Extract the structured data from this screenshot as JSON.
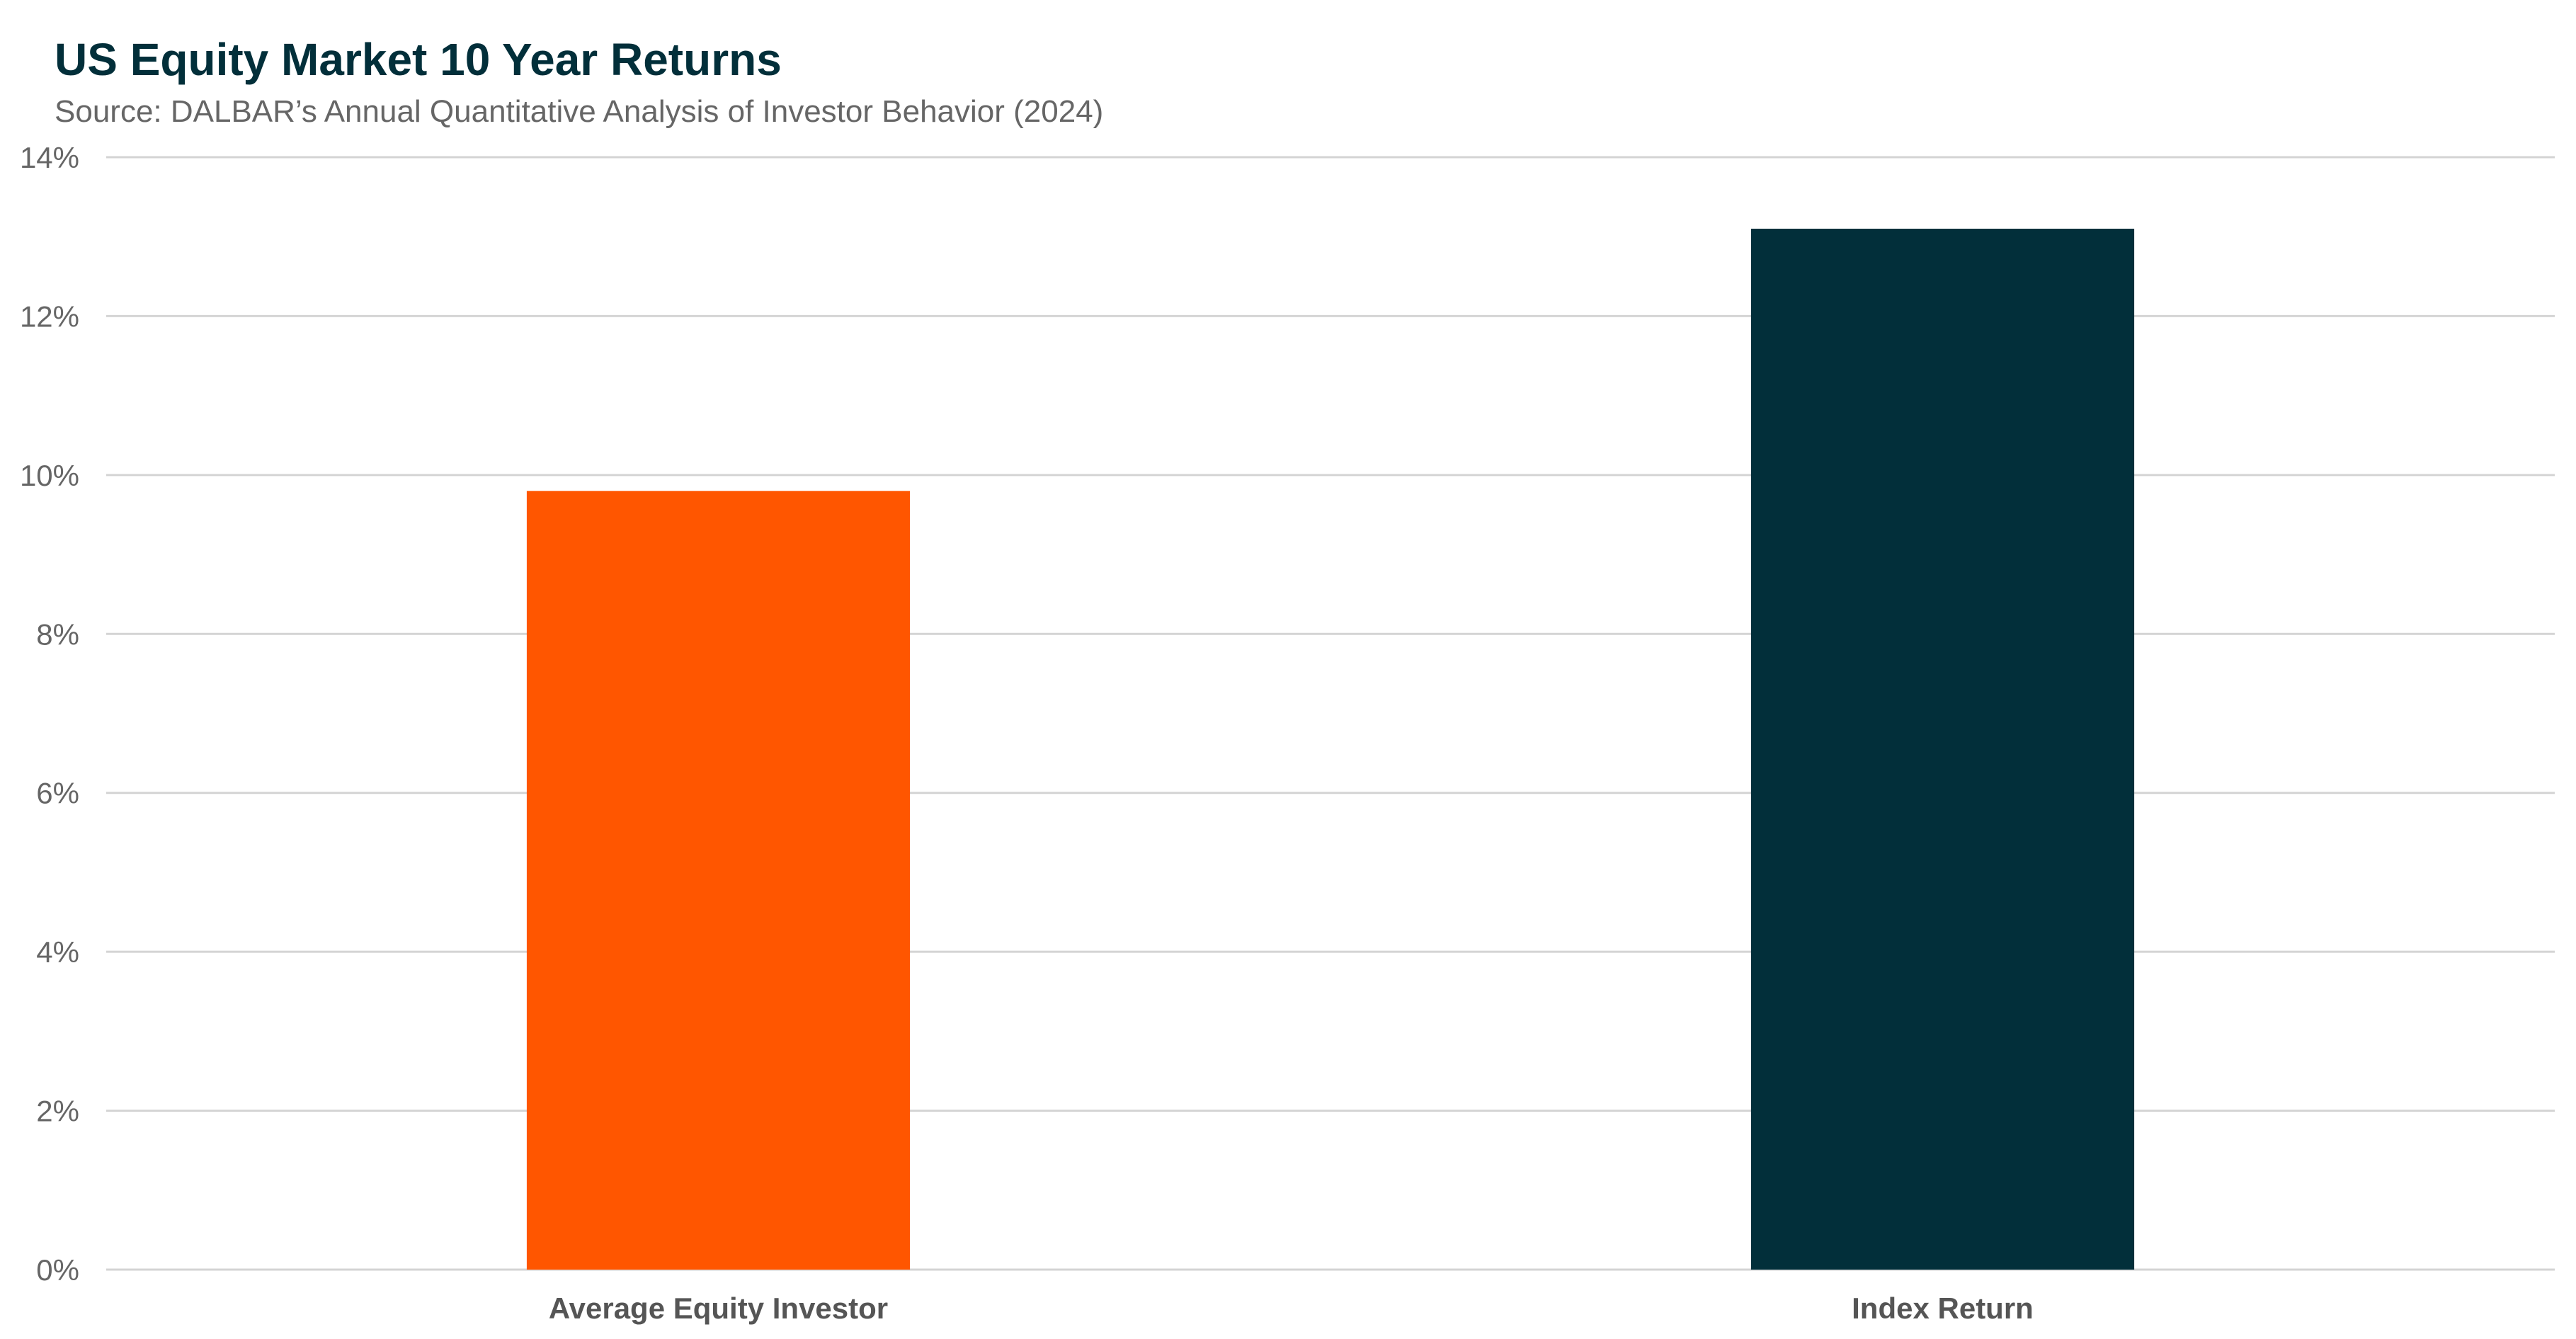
{
  "chart_data": {
    "type": "bar",
    "title": "US Equity Market 10 Year Returns",
    "subtitle": "Source: DALBAR’s Annual Quantitative Analysis of Investor Behavior (2024)",
    "xlabel": "",
    "ylabel": "",
    "categories": [
      "Average Equity Investor",
      "Index Return"
    ],
    "values": [
      9.8,
      13.1
    ],
    "colors": [
      "#ff5600",
      "#022f3a"
    ],
    "ylim": [
      0,
      14
    ],
    "yticks": [
      0,
      2,
      4,
      6,
      8,
      10,
      12,
      14
    ],
    "ytick_labels": [
      "0%",
      "2%",
      "4%",
      "6%",
      "8%",
      "10%",
      "12%",
      "14%"
    ],
    "grid": true,
    "legend": "none"
  }
}
